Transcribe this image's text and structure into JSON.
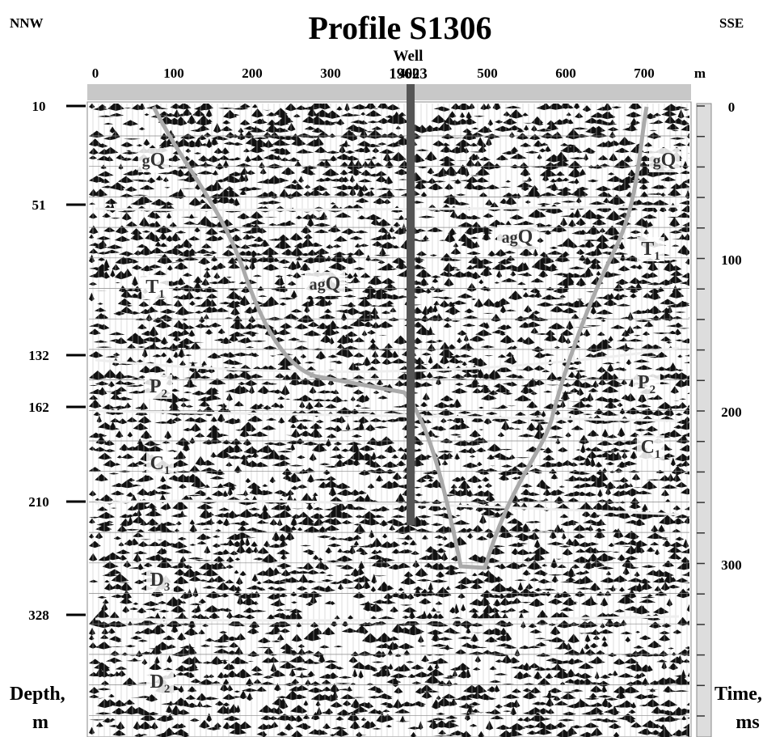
{
  "header": {
    "title": "Profile S1306",
    "left_direction": "NNW",
    "right_direction": "SSE"
  },
  "distance_axis": {
    "ticks": [
      "0",
      "100",
      "200",
      "300",
      "400",
      "500",
      "600",
      "700"
    ],
    "unit": "m"
  },
  "well": {
    "label": "Well",
    "number": "19623"
  },
  "depth_axis": {
    "ticks": [
      "10",
      "51",
      "132",
      "162",
      "210",
      "328"
    ],
    "title": "Depth,",
    "unit": "m"
  },
  "time_axis": {
    "ticks": [
      "0",
      "100",
      "200",
      "300"
    ],
    "title": "Time,",
    "unit": "ms"
  },
  "formations": [
    {
      "letter": "g",
      "main": "Q",
      "sub": ""
    },
    {
      "letter": "g",
      "main": "Q",
      "sub": ""
    },
    {
      "letter": "ag",
      "main": "Q",
      "sub": ""
    },
    {
      "letter": "ag",
      "main": "Q",
      "sub": ""
    },
    {
      "letter": "",
      "main": "T",
      "sub": "1"
    },
    {
      "letter": "",
      "main": "T",
      "sub": "1"
    },
    {
      "letter": "",
      "main": "P",
      "sub": "2"
    },
    {
      "letter": "",
      "main": "P",
      "sub": "2"
    },
    {
      "letter": "",
      "main": "C",
      "sub": "1"
    },
    {
      "letter": "",
      "main": "C",
      "sub": "1"
    },
    {
      "letter": "",
      "main": "D",
      "sub": "3"
    },
    {
      "letter": "",
      "main": "D",
      "sub": "2"
    }
  ]
}
